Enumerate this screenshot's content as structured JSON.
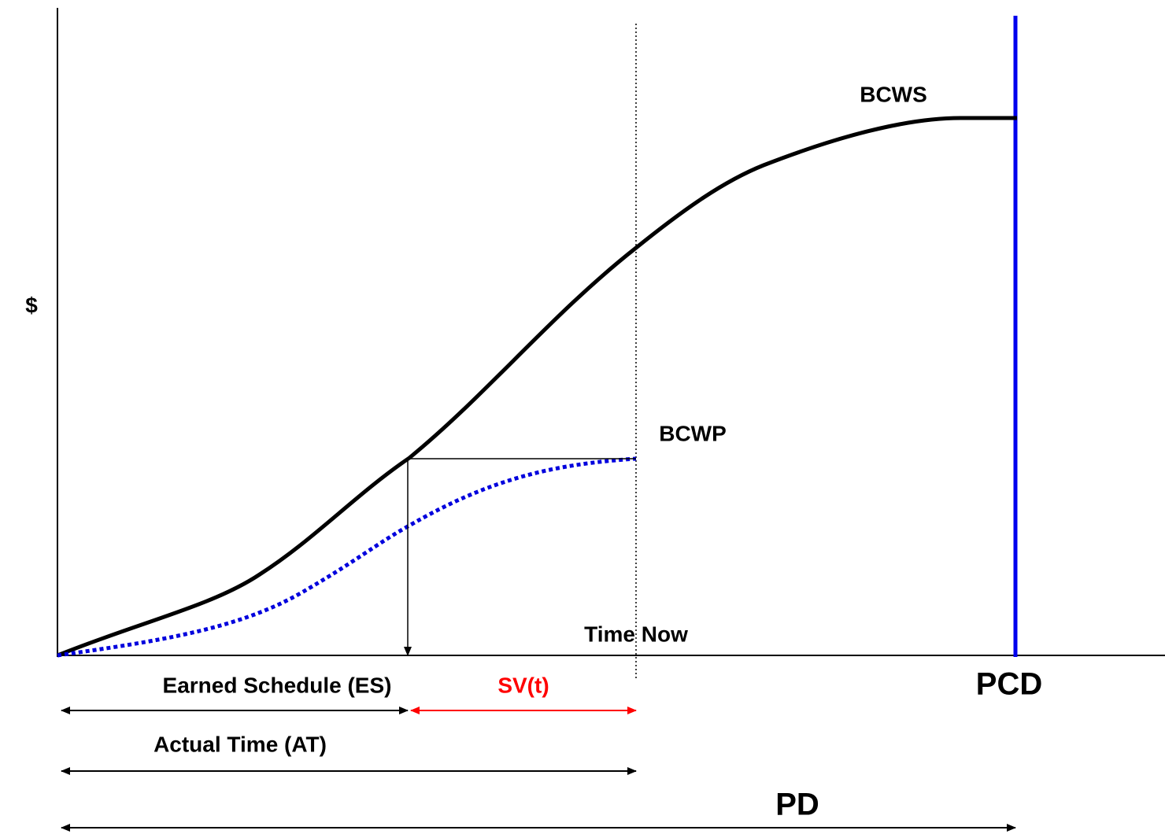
{
  "curves": {
    "planned": "BCWS",
    "earned": "BCWP"
  },
  "y_axis_label": "$",
  "time_now": "Time Now",
  "completion": "PCD",
  "spans": {
    "earned_schedule": "Earned Schedule (ES)",
    "schedule_variance": "SV(t)",
    "actual_time": "Actual Time (AT)",
    "planned_duration": "PD"
  }
}
